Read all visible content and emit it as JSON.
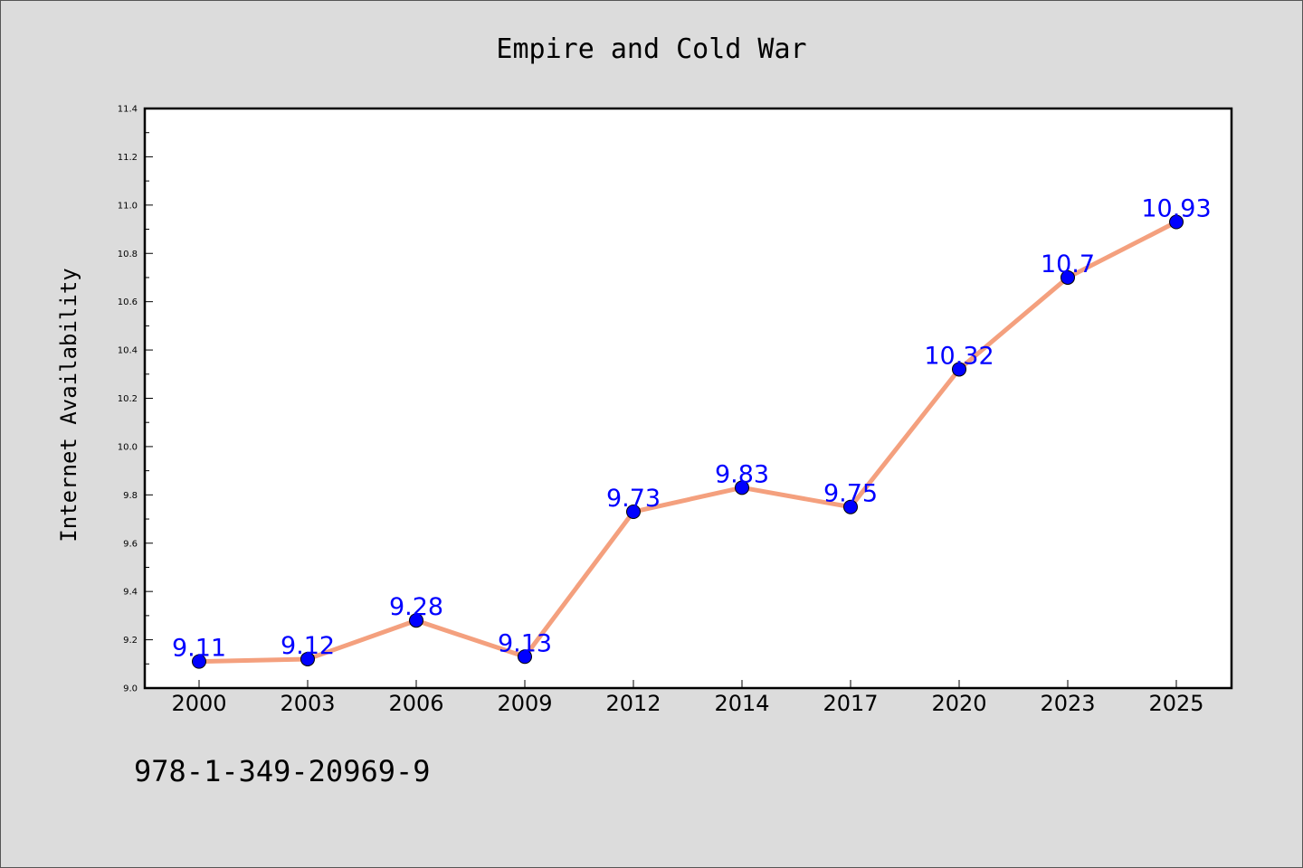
{
  "colors": {
    "background": "#dcdcdc",
    "plot_background": "#ffffff",
    "line": "#f4a07e",
    "marker": "#0000ff",
    "data_label": "#0000ff"
  },
  "footnote": "978-1-349-20969-9",
  "chart_data": {
    "type": "line",
    "title": "Empire and Cold War",
    "xlabel": "",
    "ylabel": "Internet Availability",
    "categories": [
      "2000",
      "2003",
      "2006",
      "2009",
      "2012",
      "2014",
      "2017",
      "2020",
      "2023",
      "2025"
    ],
    "series": [
      {
        "values": [
          9.11,
          9.12,
          9.28,
          9.13,
          9.73,
          9.83,
          9.75,
          10.32,
          10.7,
          10.93
        ],
        "labels": [
          "9.11",
          "9.12",
          "9.28",
          "9.13",
          "9.73",
          "9.83",
          "9.75",
          "10.32",
          "10.7",
          "10.93"
        ]
      }
    ],
    "ylim": [
      9.0,
      11.4
    ],
    "yticks": [
      "9.0",
      "9.2",
      "9.4",
      "9.6",
      "9.8",
      "10.0",
      "10.2",
      "10.4",
      "10.6",
      "10.8",
      "11.0",
      "11.2",
      "11.4"
    ],
    "grid": false,
    "legend": "none"
  }
}
